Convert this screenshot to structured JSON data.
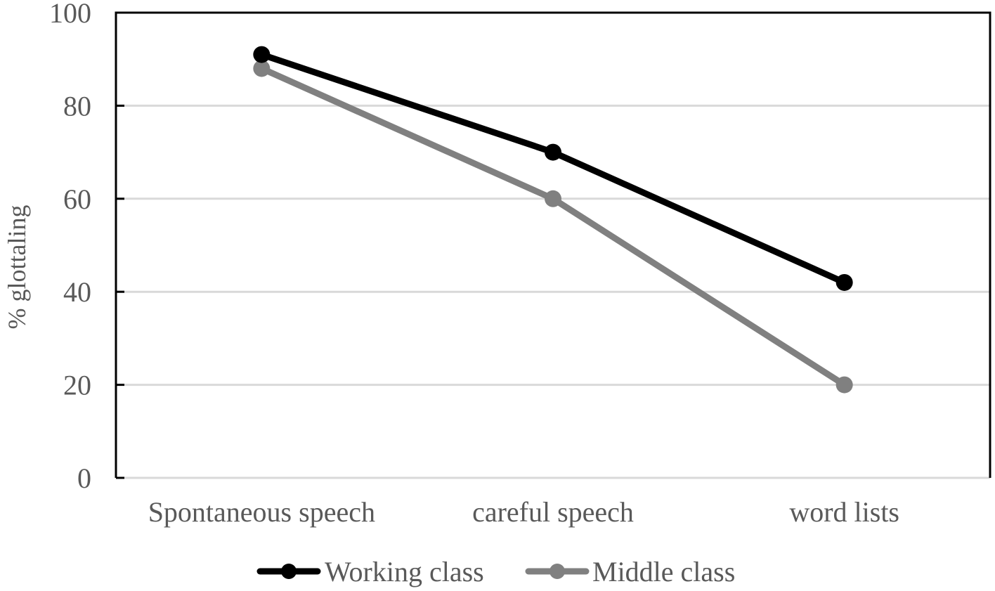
{
  "chart_data": {
    "type": "line",
    "title": "",
    "xlabel": "",
    "ylabel": "% glottaling",
    "ylim": [
      0,
      100
    ],
    "yticks": [
      "0",
      "20",
      "40",
      "60",
      "80",
      "100"
    ],
    "categories": [
      "Spontaneous speech",
      "careful speech",
      "word lists"
    ],
    "series": [
      {
        "name": "Working class",
        "color": "#000000",
        "values": [
          91,
          70,
          42
        ]
      },
      {
        "name": "Middle class",
        "color": "#808080",
        "values": [
          88,
          60,
          20
        ]
      }
    ],
    "grid": true,
    "gridColor": "#d9d9d9",
    "legend_position": "bottom"
  }
}
